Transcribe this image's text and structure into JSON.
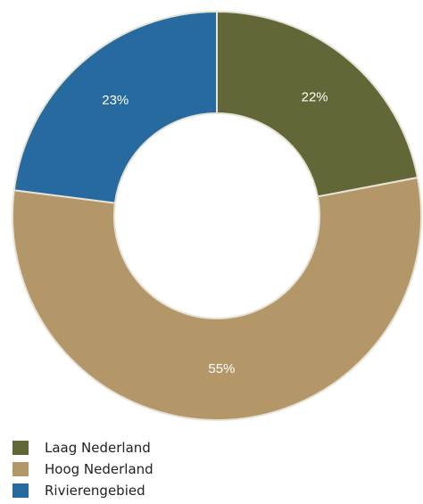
{
  "chart_data": {
    "type": "pie",
    "title": "",
    "donut": true,
    "legend_position": "bottom-left",
    "slices": [
      {
        "name": "Laag Nederland",
        "value": 22,
        "label": "22%",
        "color": "#636637"
      },
      {
        "name": "Hoog Nederland",
        "value": 55,
        "label": "55%",
        "color": "#b49769"
      },
      {
        "name": "Rivierengebied",
        "value": 23,
        "label": "23%",
        "color": "#266a9f"
      }
    ]
  }
}
